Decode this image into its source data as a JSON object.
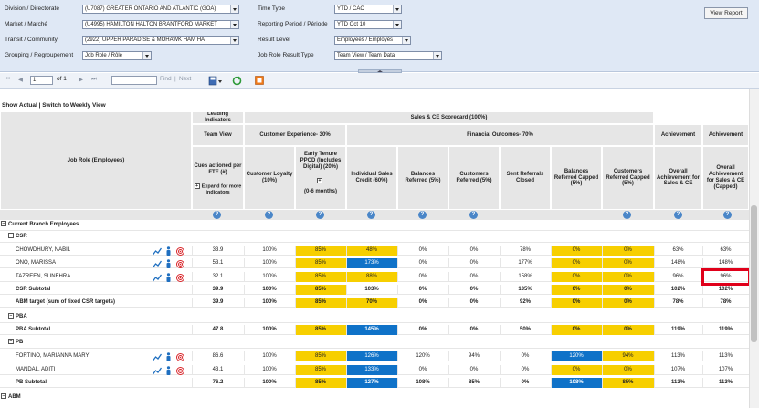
{
  "params": {
    "division_label": "Division / Directorate",
    "division_value": "(U7087) GREATER ONTARIO AND ATLANTIC (GOA)",
    "market_label": "Market / Marché",
    "market_value": "(U4995) HAMILTON HALTON BRANTFORD MARKET",
    "transit_label": "Transit / Community",
    "transit_value": "(2922) UPPER PARADISE & MOHAWK HAM HA",
    "grouping_label": "Grouping / Regroupement",
    "grouping_value": "Job Role / Rôle",
    "time_type_label": "Time Type",
    "time_type_value": "YTD / CAC",
    "period_label": "Reporting Period / Période",
    "period_value": "YTD Oct 10",
    "result_level_label": "Result Level",
    "result_level_value": "Employees / Employés",
    "result_type_label": "Job Role Result Type",
    "result_type_value": "Team View / Team Data",
    "view_report": "View Report"
  },
  "toolbar": {
    "first": "⏮",
    "prev": "◀",
    "page": "1",
    "of": "of 1",
    "next": "▶",
    "last": "⏭",
    "find": "Find",
    "sep": "|",
    "next_link": "Next"
  },
  "view_toggle": "Show Actual | Switch to Weekly View",
  "header": {
    "leading": "Leading Indicators",
    "scorecard": "Sales & CE Scorecard (100%)",
    "team_view": "Team View",
    "cust_exp": "Customer Experience- 30%",
    "financial": "Financial Outcomes- 70%",
    "achievement1": "Achievement",
    "achievement2": "Achievement",
    "job_role": "Job Role (Employees)",
    "cues": "Cues actioned per FTE (#)",
    "expand": "Expand for more indicators",
    "loyalty": "Customer Loyalty (10%)",
    "tenure": "Early Tenure PPCD (Includes Digital) (20%)",
    "tenure_sub": "(0-6 months)",
    "ind_sales": "Individual Sales Credit (60%)",
    "bal_ref": "Balances Referred (5%)",
    "cust_ref": "Customers Referred (5%)",
    "sent_ref": "Sent Referrals Closed",
    "bal_cap": "Balances Referred Capped (5%)",
    "cust_cap": "Customers Referred Capped (5%)",
    "overall1": "Overall Achievement for Sales & CE",
    "overall2": "Overall Achievement for Sales & CE (Capped)",
    "q": "?"
  },
  "groups": {
    "current": "Current Branch Employees",
    "csr": "CSR",
    "pba": "PBA",
    "pb": "PB",
    "abm": "ABM"
  },
  "rows": {
    "r1": {
      "name": "CHOWDHURY, NABIL",
      "cues": "33.9",
      "loyalty": "100%",
      "tenure": "85%",
      "sales": "48%",
      "bal": "0%",
      "cust": "0%",
      "sent": "78%",
      "balcap": "0%",
      "custcap": "0%",
      "ov1": "63%",
      "ov2": "63%"
    },
    "r2": {
      "name": "ONO, MARISSA",
      "cues": "53.1",
      "loyalty": "100%",
      "tenure": "85%",
      "sales": "173%",
      "bal": "0%",
      "cust": "0%",
      "sent": "177%",
      "balcap": "0%",
      "custcap": "0%",
      "ov1": "148%",
      "ov2": "148%"
    },
    "r3": {
      "name": "TAZREEN, SUNEHRA",
      "cues": "32.1",
      "loyalty": "100%",
      "tenure": "85%",
      "sales": "88%",
      "bal": "0%",
      "cust": "0%",
      "sent": "158%",
      "balcap": "0%",
      "custcap": "0%",
      "ov1": "96%",
      "ov2": "96%"
    },
    "csr_sub": {
      "name": "CSR Subtotal",
      "cues": "39.9",
      "loyalty": "100%",
      "tenure": "85%",
      "sales": "103%",
      "bal": "0%",
      "cust": "0%",
      "sent": "135%",
      "balcap": "0%",
      "custcap": "0%",
      "ov1": "102%",
      "ov2": "102%"
    },
    "abm_t": {
      "name": "ABM target (sum of fixed CSR targets)",
      "cues": "39.9",
      "loyalty": "100%",
      "tenure": "85%",
      "sales": "70%",
      "bal": "0%",
      "cust": "0%",
      "sent": "92%",
      "balcap": "0%",
      "custcap": "0%",
      "ov1": "78%",
      "ov2": "78%"
    },
    "pba_sub": {
      "name": "PBA Subtotal",
      "cues": "47.8",
      "loyalty": "100%",
      "tenure": "85%",
      "sales": "145%",
      "bal": "0%",
      "cust": "0%",
      "sent": "50%",
      "balcap": "0%",
      "custcap": "0%",
      "ov1": "119%",
      "ov2": "119%"
    },
    "r4": {
      "name": "FORTINO, MARIANNA MARY",
      "cues": "86.6",
      "loyalty": "100%",
      "tenure": "85%",
      "sales": "126%",
      "bal": "120%",
      "cust": "94%",
      "sent": "0%",
      "balcap": "120%",
      "custcap": "94%",
      "ov1": "113%",
      "ov2": "113%"
    },
    "r5": {
      "name": "MANDAL, ADITI",
      "cues": "43.1",
      "loyalty": "100%",
      "tenure": "85%",
      "sales": "133%",
      "bal": "0%",
      "cust": "0%",
      "sent": "0%",
      "balcap": "0%",
      "custcap": "0%",
      "ov1": "107%",
      "ov2": "107%"
    },
    "pb_sub": {
      "name": "PB Subtotal",
      "cues": "76.2",
      "loyalty": "100%",
      "tenure": "85%",
      "sales": "127%",
      "bal": "108%",
      "cust": "85%",
      "sent": "0%",
      "balcap": "108%",
      "custcap": "85%",
      "ov1": "113%",
      "ov2": "113%"
    }
  },
  "colors": {
    "yellow": "#f7cf00",
    "blue": "#0f72c8",
    "highlight": "#e0001a"
  }
}
